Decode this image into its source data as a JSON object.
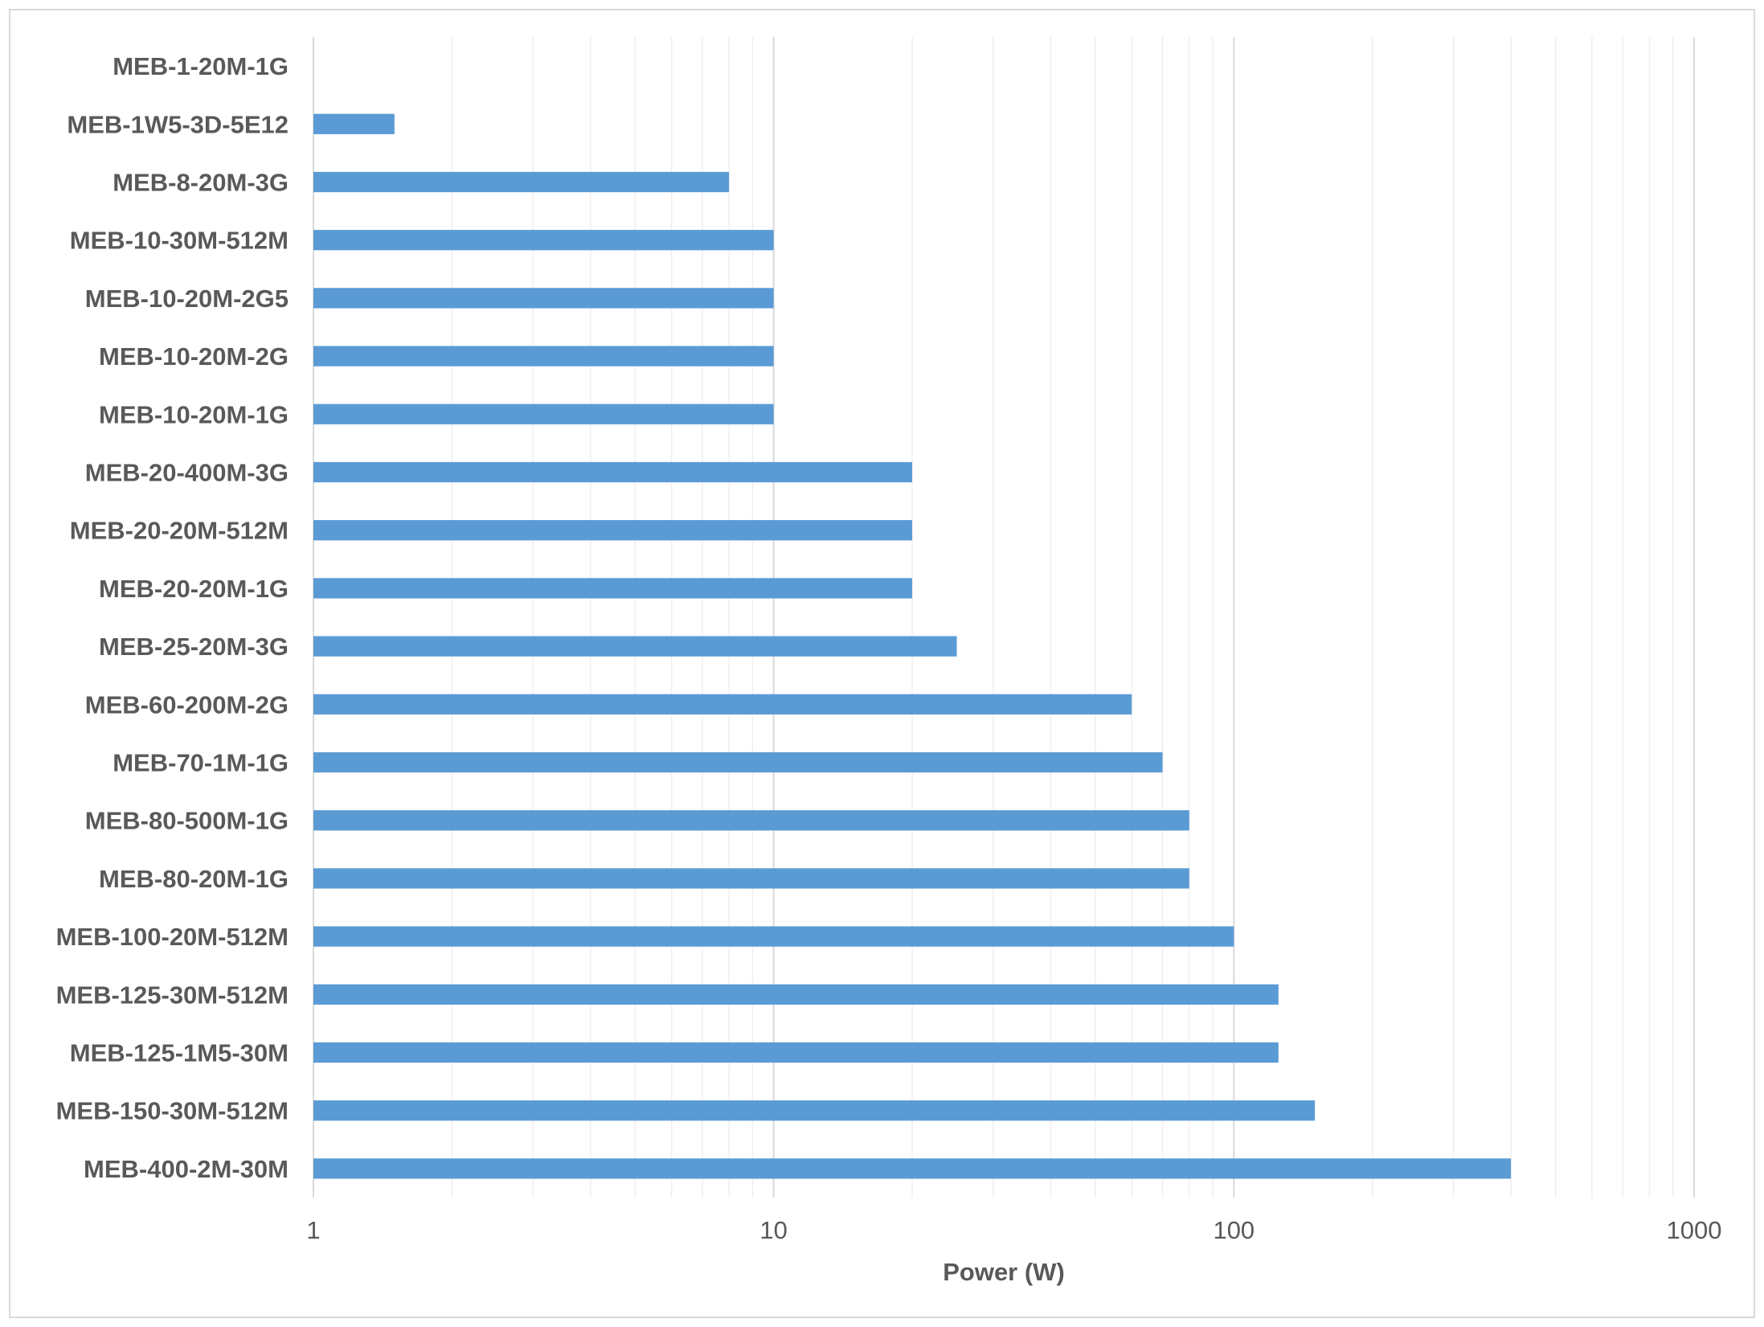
{
  "chart_data": {
    "type": "bar",
    "orientation": "horizontal",
    "title": "",
    "xlabel": "Power (W)",
    "ylabel": "",
    "x_scale": "log",
    "xlim": [
      1,
      1000
    ],
    "x_ticks": [
      "1",
      "10",
      "100",
      "1000"
    ],
    "grid": "vertical major and minor",
    "legend": "none",
    "bar_color": "#5b9bd5",
    "categories": [
      "MEB-1-20M-1G",
      "MEB-1W5-3D-5E12",
      "MEB-8-20M-3G",
      "MEB-10-30M-512M",
      "MEB-10-20M-2G5",
      "MEB-10-20M-2G",
      "MEB-10-20M-1G",
      "MEB-20-400M-3G",
      "MEB-20-20M-512M",
      "MEB-20-20M-1G",
      "MEB-25-20M-3G",
      "MEB-60-200M-2G",
      "MEB-70-1M-1G",
      "MEB-80-500M-1G",
      "MEB-80-20M-1G",
      "MEB-100-20M-512M",
      "MEB-125-30M-512M",
      "MEB-125-1M5-30M",
      "MEB-150-30M-512M",
      "MEB-400-2M-30M"
    ],
    "values": [
      1,
      1.5,
      8,
      10,
      10,
      10,
      10,
      20,
      20,
      20,
      25,
      60,
      70,
      80,
      80,
      100,
      125,
      125,
      150,
      400
    ]
  }
}
